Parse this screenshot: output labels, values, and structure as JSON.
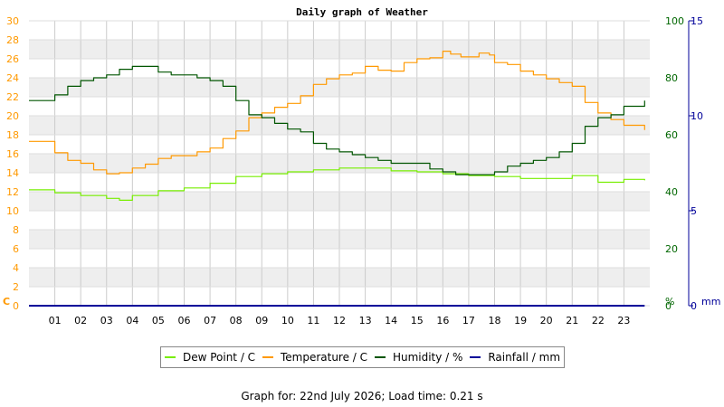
{
  "chart_data": {
    "type": "line",
    "title": "Daily graph of Weather",
    "x_ticks": [
      "01",
      "02",
      "03",
      "04",
      "05",
      "06",
      "07",
      "08",
      "09",
      "10",
      "11",
      "12",
      "13",
      "14",
      "15",
      "16",
      "17",
      "18",
      "19",
      "20",
      "21",
      "22",
      "23"
    ],
    "x_range": [
      0,
      24
    ],
    "left_axis": {
      "unit": "C",
      "range": [
        0,
        30
      ],
      "ticks": [
        0,
        2,
        4,
        6,
        8,
        10,
        12,
        14,
        16,
        18,
        20,
        22,
        24,
        26,
        28,
        30
      ],
      "color": "#ff9900"
    },
    "pct_axis": {
      "unit": "%",
      "range": [
        0,
        100
      ],
      "ticks": [
        0,
        20,
        40,
        60,
        80,
        100
      ],
      "color": "#006600"
    },
    "mm_axis": {
      "unit": "mm",
      "range": [
        0,
        15
      ],
      "ticks": [
        0,
        5,
        10,
        15
      ],
      "color": "#000099"
    },
    "grid": true,
    "series": [
      {
        "name": "Dew Point / C",
        "axis": "left",
        "color": "#77ee00",
        "x": [
          0,
          1,
          2,
          3,
          3.5,
          4,
          5,
          6,
          7,
          8,
          9,
          10,
          11,
          12,
          13,
          14,
          15,
          16,
          17,
          18,
          19,
          20,
          21,
          22,
          23,
          23.8
        ],
        "values": [
          12.2,
          11.9,
          11.6,
          11.3,
          11.1,
          11.6,
          12.1,
          12.4,
          12.9,
          13.6,
          13.9,
          14.1,
          14.3,
          14.5,
          14.5,
          14.2,
          14.1,
          13.9,
          13.7,
          13.6,
          13.4,
          13.4,
          13.7,
          13.0,
          13.3,
          13.2
        ]
      },
      {
        "name": "Temperature / C",
        "axis": "left",
        "color": "#ff9900",
        "x": [
          0,
          0.5,
          1,
          1.5,
          2,
          2.5,
          3,
          3.5,
          4,
          4.5,
          5,
          5.5,
          6,
          6.5,
          7,
          7.5,
          8,
          8.5,
          9,
          9.5,
          10,
          10.5,
          11,
          11.5,
          12,
          12.5,
          13,
          13.5,
          14,
          14.5,
          15,
          15.5,
          16,
          16.3,
          16.7,
          17,
          17.4,
          17.8,
          18,
          18.5,
          19,
          19.5,
          20,
          20.5,
          21,
          21.5,
          22,
          22.5,
          23,
          23.8
        ],
        "values": [
          17.3,
          17.3,
          16.1,
          15.3,
          15.0,
          14.3,
          13.9,
          14.0,
          14.5,
          14.9,
          15.5,
          15.8,
          15.8,
          16.2,
          16.6,
          17.6,
          18.4,
          19.8,
          20.3,
          20.9,
          21.3,
          22.1,
          23.3,
          23.9,
          24.3,
          24.5,
          25.2,
          24.8,
          24.7,
          25.6,
          26.0,
          26.1,
          26.8,
          26.5,
          26.2,
          26.2,
          26.6,
          26.4,
          25.6,
          25.4,
          24.7,
          24.3,
          23.9,
          23.5,
          23.1,
          21.4,
          20.3,
          19.6,
          19.0,
          18.5
        ]
      },
      {
        "name": "Humidity / %",
        "axis": "pct",
        "color": "#005500",
        "x": [
          0,
          0.5,
          1,
          1.5,
          2,
          2.5,
          3,
          3.5,
          4,
          4.5,
          5,
          5.5,
          6,
          6.5,
          7,
          7.5,
          8,
          8.5,
          9,
          9.5,
          10,
          10.5,
          11,
          11.5,
          12,
          12.5,
          13,
          13.5,
          14,
          14.5,
          15,
          15.5,
          16,
          16.5,
          17,
          17.5,
          18,
          18.5,
          19,
          19.5,
          20,
          20.5,
          21,
          21.5,
          22,
          22.5,
          23,
          23.8
        ],
        "values": [
          72,
          72,
          74,
          77,
          79,
          80,
          81,
          83,
          84,
          84,
          82,
          81,
          81,
          80,
          79,
          77,
          72,
          67,
          66,
          64,
          62,
          61,
          57,
          55,
          54,
          53,
          52,
          51,
          50,
          50,
          50,
          48,
          47,
          46,
          46,
          46,
          47,
          49,
          50,
          51,
          52,
          54,
          57,
          63,
          66,
          67,
          70,
          72
        ]
      },
      {
        "name": "Rainfall / mm",
        "axis": "mm",
        "color": "#000099",
        "x": [
          0,
          23.8
        ],
        "values": [
          0,
          0
        ]
      }
    ]
  },
  "legend": [
    {
      "label": "Dew Point / C",
      "color": "#77ee00"
    },
    {
      "label": "Temperature / C",
      "color": "#ff9900"
    },
    {
      "label": "Humidity / %",
      "color": "#005500"
    },
    {
      "label": "Rainfall / mm",
      "color": "#000099"
    }
  ],
  "footer": "Graph for: 22nd July 2026; Load time: 0.21 s"
}
